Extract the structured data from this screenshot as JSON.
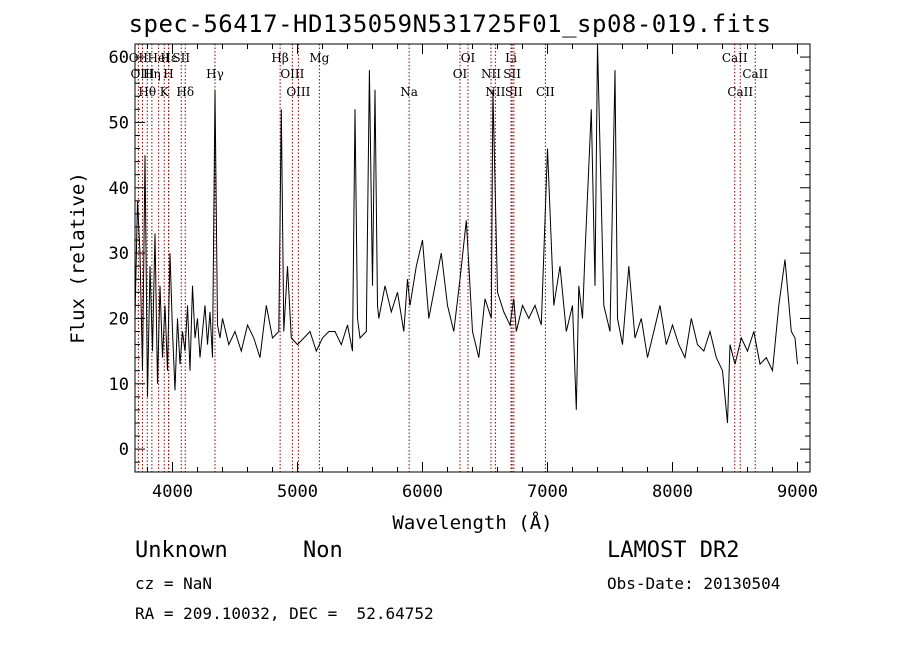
{
  "title": "spec-56417-HD135059N531725F01_sp08-019.fits",
  "footer": {
    "class_label": "Unknown",
    "subclass_label": "Non",
    "survey": "LAMOST DR2",
    "redshift": "cz = NaN",
    "obs_date": "Obs-Date: 20130504",
    "coords": "RA = 209.10032, DEC =  52.64752"
  },
  "colors": {
    "spectrum": "#000000",
    "line_marker": "#8b0000",
    "axes": "#000000"
  },
  "chart_data": {
    "type": "line",
    "title": "spec-56417-HD135059N531725F01_sp08-019.fits",
    "xlabel": "Wavelength (Å)",
    "ylabel": "Flux (relative)",
    "xlim": [
      3700,
      9100
    ],
    "ylim": [
      -3.5,
      62
    ],
    "grid": false,
    "x_ticks": [
      4000,
      5000,
      6000,
      7000,
      8000,
      9000
    ],
    "y_ticks": [
      0,
      10,
      20,
      30,
      40,
      50,
      60
    ],
    "series": [
      {
        "x": [
          3700,
          3720,
          3740,
          3760,
          3780,
          3800,
          3820,
          3840,
          3860,
          3880,
          3900,
          3920,
          3940,
          3960,
          3980,
          4000,
          4020,
          4040,
          4060,
          4080,
          4100,
          4120,
          4140,
          4160,
          4180,
          4200,
          4220,
          4240,
          4260,
          4280,
          4300,
          4320,
          4340,
          4360,
          4380,
          4400,
          4450,
          4500,
          4550,
          4600,
          4650,
          4700,
          4750,
          4800,
          4850,
          4870,
          4890,
          4920,
          4950,
          5000,
          5050,
          5100,
          5150,
          5200,
          5250,
          5300,
          5350,
          5400,
          5440,
          5460,
          5480,
          5500,
          5550,
          5575,
          5600,
          5620,
          5640,
          5650,
          5700,
          5750,
          5800,
          5850,
          5880,
          5900,
          5950,
          6000,
          6050,
          6100,
          6150,
          6200,
          6250,
          6300,
          6350,
          6400,
          6450,
          6500,
          6550,
          6563,
          6600,
          6650,
          6700,
          6730,
          6750,
          6800,
          6850,
          6900,
          6950,
          7000,
          7050,
          7100,
          7150,
          7200,
          7230,
          7250,
          7280,
          7300,
          7350,
          7380,
          7400,
          7450,
          7500,
          7540,
          7560,
          7600,
          7650,
          7700,
          7750,
          7800,
          7850,
          7900,
          7950,
          8000,
          8050,
          8100,
          8150,
          8200,
          8250,
          8300,
          8350,
          8400,
          8440,
          8460,
          8500,
          8550,
          8600,
          8650,
          8700,
          8750,
          8800,
          8850,
          8900,
          8950,
          8980,
          9000
        ],
        "y": [
          20,
          38,
          30,
          12,
          45,
          8,
          28,
          15,
          33,
          10,
          25,
          14,
          22,
          12,
          30,
          18,
          9,
          20,
          13,
          18,
          15,
          22,
          12,
          25,
          17,
          20,
          14,
          18,
          22,
          16,
          21,
          14,
          55,
          19,
          17,
          20,
          16,
          18,
          15,
          19,
          17,
          14,
          22,
          17,
          18,
          52,
          18,
          28,
          17,
          16,
          17,
          18,
          15,
          17,
          18,
          18,
          16,
          19,
          15,
          52,
          20,
          17,
          18,
          58,
          25,
          55,
          22,
          20,
          25,
          21,
          24,
          18,
          26,
          22,
          28,
          32,
          20,
          25,
          30,
          22,
          18,
          26,
          35,
          18,
          14,
          23,
          20,
          55,
          24,
          21,
          19,
          23,
          18,
          22,
          20,
          22,
          19,
          46,
          22,
          28,
          18,
          22,
          6,
          25,
          20,
          30,
          52,
          25,
          62,
          22,
          18,
          58,
          20,
          16,
          28,
          17,
          20,
          14,
          18,
          22,
          16,
          19,
          16,
          14,
          20,
          16,
          15,
          18,
          14,
          12,
          4,
          16,
          13,
          17,
          15,
          18,
          13,
          14,
          12,
          22,
          29,
          18,
          17,
          13
        ]
      }
    ],
    "annotations": [
      {
        "label": "OII",
        "x": 3727,
        "row": 1
      },
      {
        "label": "Hε",
        "x": 3970,
        "row": 1
      },
      {
        "label": "HeI",
        "x": 3889,
        "row": 1
      },
      {
        "label": "SII",
        "x": 4070,
        "row": 1
      },
      {
        "label": "OIII",
        "x": 3760,
        "row": 2
      },
      {
        "label": "Hη",
        "x": 3835,
        "row": 2
      },
      {
        "label": "H",
        "x": 3968,
        "row": 2
      },
      {
        "label": "Hθ",
        "x": 3798,
        "row": 3
      },
      {
        "label": "K",
        "x": 3934,
        "row": 3
      },
      {
        "label": "Hδ",
        "x": 4102,
        "row": 3
      },
      {
        "label": "Hγ",
        "x": 4340,
        "row": 2
      },
      {
        "label": "Hβ",
        "x": 4861,
        "row": 1
      },
      {
        "label": "OIII",
        "x": 4959,
        "row": 2
      },
      {
        "label": "OIII",
        "x": 5007,
        "row": 3
      },
      {
        "label": "Mg",
        "x": 5175,
        "row": 1
      },
      {
        "label": "Na",
        "x": 5893,
        "row": 3
      },
      {
        "label": "OI",
        "x": 6300,
        "row": 2
      },
      {
        "label": "OI",
        "x": 6364,
        "row": 1
      },
      {
        "label": "NII",
        "x": 6548,
        "row": 2
      },
      {
        "label": "NII",
        "x": 6583,
        "row": 3
      },
      {
        "label": "Li",
        "x": 6708,
        "row": 1
      },
      {
        "label": "SII",
        "x": 6717,
        "row": 2
      },
      {
        "label": "SII",
        "x": 6731,
        "row": 3
      },
      {
        "label": "CII",
        "x": 6983,
        "row": 3
      },
      {
        "label": "CaII",
        "x": 8498,
        "row": 1
      },
      {
        "label": "CaII",
        "x": 8542,
        "row": 3
      },
      {
        "label": "CaII",
        "x": 8662,
        "row": 2
      }
    ]
  }
}
